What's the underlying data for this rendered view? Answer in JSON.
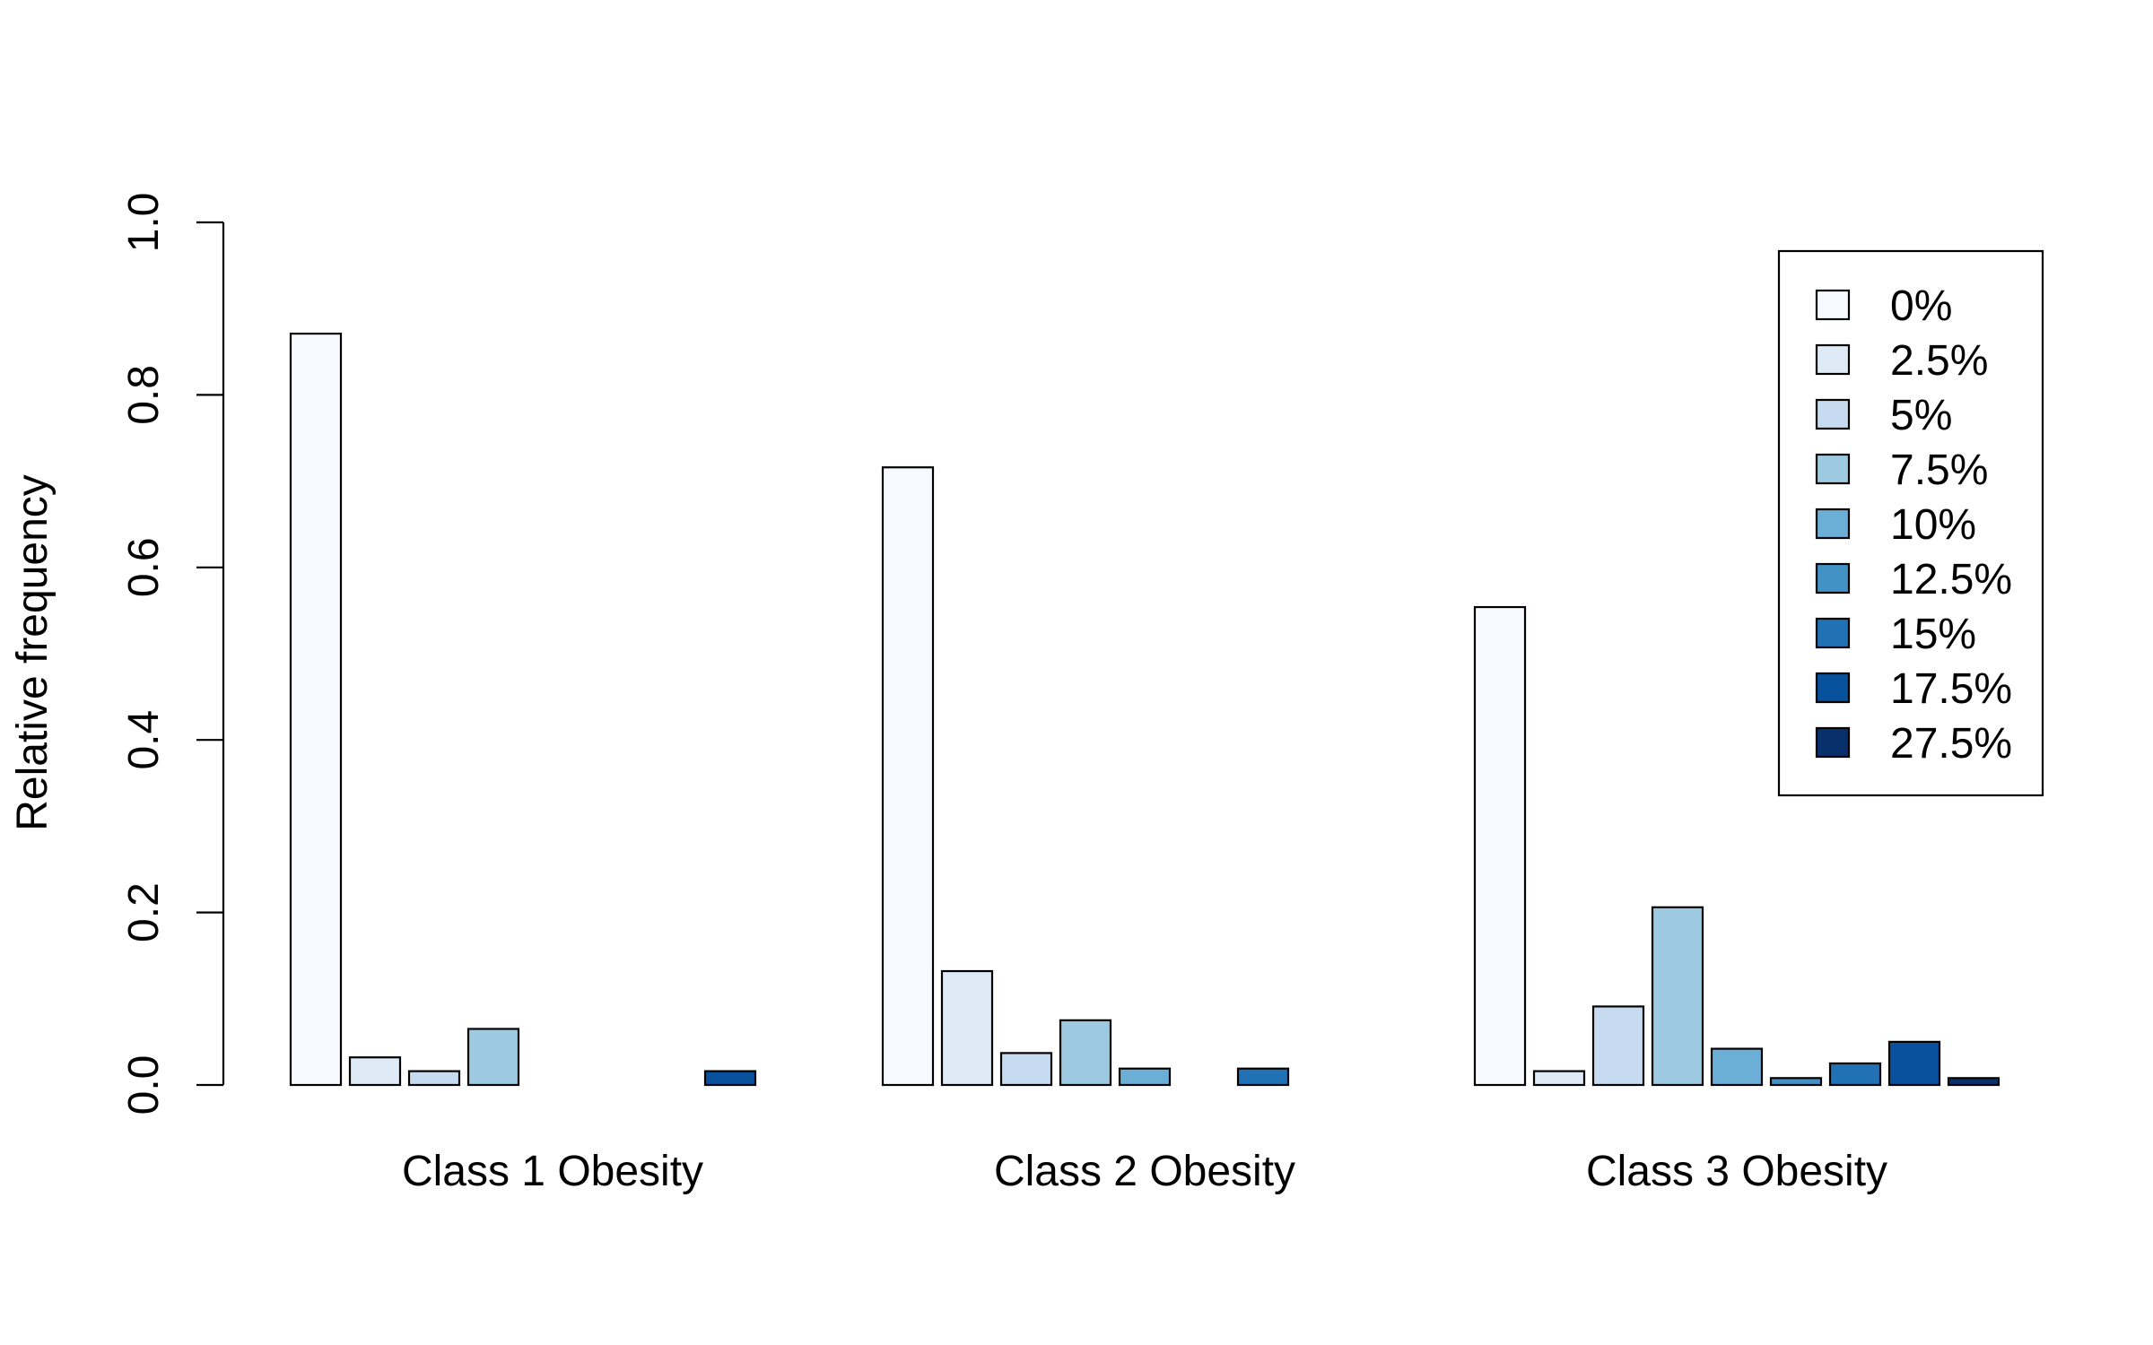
{
  "chart_data": {
    "type": "bar",
    "title": "",
    "xlabel": "",
    "ylabel": "Relative frequency",
    "ylim": [
      0,
      1.0
    ],
    "y_ticks": [
      0.0,
      0.2,
      0.4,
      0.6,
      0.8,
      1.0
    ],
    "y_tick_labels": [
      "0.0",
      "0.2",
      "0.4",
      "0.6",
      "0.8",
      "1.0"
    ],
    "grid": false,
    "legend_position": "top-right",
    "categories": [
      "Class 1 Obesity",
      "Class 2 Obesity",
      "Class 3 Obesity"
    ],
    "series": [
      {
        "name": "0%",
        "color": "#F7FBFF",
        "values": [
          0.871,
          0.716,
          0.554
        ]
      },
      {
        "name": "2.5%",
        "color": "#DEEBF7",
        "values": [
          0.032,
          0.132,
          0.016
        ]
      },
      {
        "name": "5%",
        "color": "#C6DBEF",
        "values": [
          0.016,
          0.037,
          0.091
        ]
      },
      {
        "name": "7.5%",
        "color": "#9ECAE1",
        "values": [
          0.065,
          0.075,
          0.206
        ]
      },
      {
        "name": "10%",
        "color": "#6BAED6",
        "values": [
          0.0,
          0.019,
          0.042
        ]
      },
      {
        "name": "12.5%",
        "color": "#4292C6",
        "values": [
          0.0,
          0.0,
          0.008
        ]
      },
      {
        "name": "15%",
        "color": "#2171B5",
        "values": [
          0.0,
          0.019,
          0.025
        ]
      },
      {
        "name": "17.5%",
        "color": "#08519C",
        "values": [
          0.016,
          0.0,
          0.05
        ]
      },
      {
        "name": "27.5%",
        "color": "#08306B",
        "values": [
          0.0,
          0.0,
          0.008
        ]
      }
    ]
  }
}
